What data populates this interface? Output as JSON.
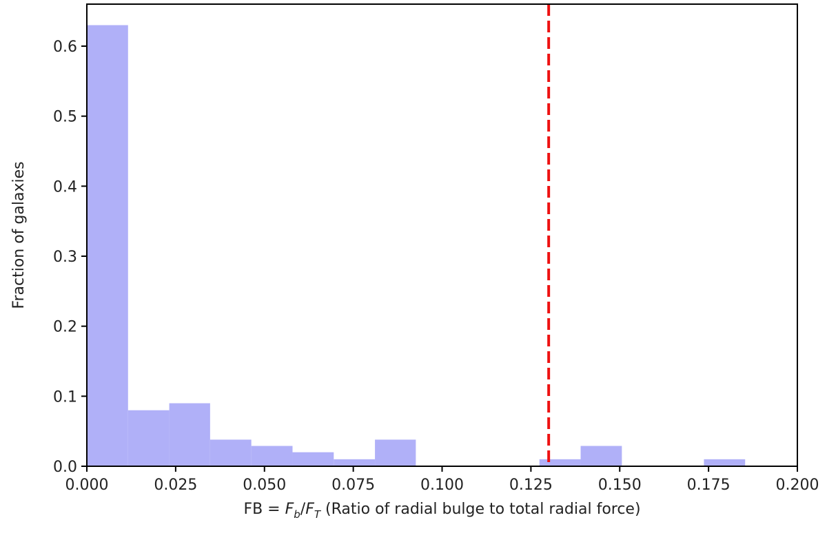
{
  "chart_data": {
    "type": "bar",
    "title": "",
    "xlabel": {
      "prefix": "FB = ",
      "var1": "F",
      "sub1": "b",
      "slash": "/",
      "var2": "F",
      "sub2": "T",
      "suffix": " (Ratio of radial bulge to total radial force)"
    },
    "ylabel": "Fraction of galaxies",
    "xlim": [
      0.0,
      0.2
    ],
    "ylim": [
      0.0,
      0.66
    ],
    "xticks": [
      "0.000",
      "0.025",
      "0.050",
      "0.075",
      "0.100",
      "0.125",
      "0.150",
      "0.175",
      "0.200"
    ],
    "yticks": [
      "0.0",
      "0.1",
      "0.2",
      "0.3",
      "0.4",
      "0.5",
      "0.6"
    ],
    "bin_width": 0.01158,
    "bars": [
      {
        "x0": 0.0,
        "x1": 0.0116,
        "value": 0.63
      },
      {
        "x0": 0.0116,
        "x1": 0.0232,
        "value": 0.08
      },
      {
        "x0": 0.0232,
        "x1": 0.0347,
        "value": 0.09
      },
      {
        "x0": 0.0347,
        "x1": 0.0463,
        "value": 0.038
      },
      {
        "x0": 0.0463,
        "x1": 0.0579,
        "value": 0.029
      },
      {
        "x0": 0.0579,
        "x1": 0.0695,
        "value": 0.02
      },
      {
        "x0": 0.0695,
        "x1": 0.0811,
        "value": 0.01
      },
      {
        "x0": 0.0811,
        "x1": 0.0926,
        "value": 0.038
      },
      {
        "x0": 0.1274,
        "x1": 0.139,
        "value": 0.01
      },
      {
        "x0": 0.139,
        "x1": 0.1506,
        "value": 0.029
      },
      {
        "x0": 0.1737,
        "x1": 0.1853,
        "value": 0.01
      }
    ],
    "threshold_line": {
      "x": 0.13,
      "style": "dashed"
    },
    "colors": {
      "bars": "#b0b0f8",
      "threshold": "#ee1111",
      "axes": "#000000"
    },
    "grid": false,
    "legend": "none"
  }
}
